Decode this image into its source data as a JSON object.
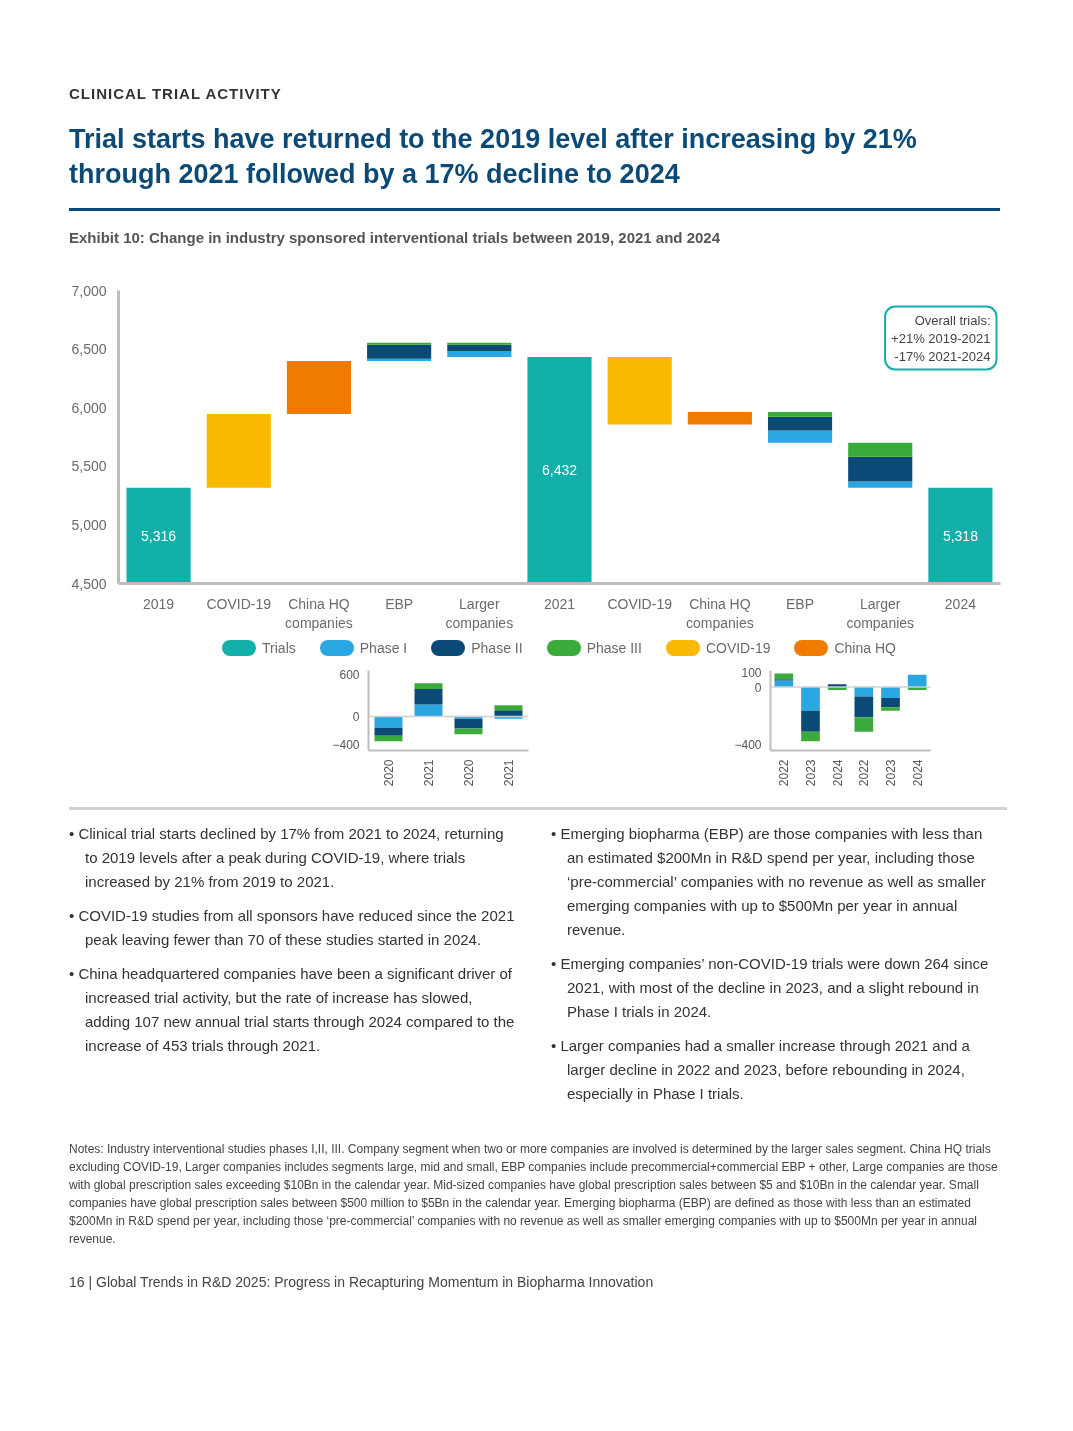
{
  "chart_data": [
    {
      "type": "bar",
      "title": "Trial starts have returned to the 2019 level after increasing by 21% through 2021 followed by a 17% decline to 2024",
      "subtitle": "Exhibit 10: Change in industry sponsored interventional trials between 2019, 2021 and 2024",
      "categories": [
        "2019",
        "COVID-19",
        "China HQ companies",
        "EBP",
        "Larger companies",
        "2021",
        "COVID-19",
        "China HQ companies",
        "EBP",
        "Larger companies",
        "2024"
      ],
      "series": [
        {
          "name": "Trials",
          "color": "#12b0a8",
          "values": [
            5316,
            null,
            null,
            null,
            null,
            6432,
            null,
            null,
            null,
            null,
            5318
          ],
          "value_labels": [
            "5,316",
            null,
            null,
            null,
            null,
            "6,432",
            null,
            null,
            null,
            null,
            "5,318"
          ]
        },
        {
          "name": "Phase I",
          "color": "#2aa6e0",
          "values": [
            null,
            null,
            null,
            18,
            52,
            null,
            null,
            null,
            105,
            52,
            null
          ],
          "base": [
            null,
            null,
            null,
            6399,
            6432,
            null,
            null,
            null,
            5700,
            5318,
            null
          ]
        },
        {
          "name": "Phase II",
          "color": "#0b4a77",
          "values": [
            null,
            null,
            null,
            120,
            53,
            null,
            null,
            null,
            117,
            212,
            null
          ],
          "base": [
            null,
            null,
            null,
            6417,
            6484,
            null,
            null,
            null,
            5805,
            5370,
            null
          ]
        },
        {
          "name": "Phase III",
          "color": "#3aaa3a",
          "values": [
            null,
            null,
            null,
            18,
            18,
            null,
            null,
            null,
            42,
            118,
            null
          ],
          "base": [
            null,
            null,
            null,
            6537,
            6537,
            null,
            null,
            null,
            5922,
            5582,
            null
          ]
        },
        {
          "name": "COVID-19",
          "color": "#fbb800",
          "values": [
            null,
            630,
            null,
            null,
            null,
            null,
            575,
            null,
            null,
            null,
            null
          ],
          "base": [
            null,
            5316,
            null,
            null,
            null,
            null,
            5857,
            null,
            null,
            null,
            null
          ]
        },
        {
          "name": "China HQ",
          "color": "#ef7c00",
          "values": [
            null,
            null,
            453,
            null,
            null,
            null,
            null,
            107,
            null,
            null,
            null
          ],
          "base": [
            null,
            null,
            5946,
            null,
            null,
            null,
            null,
            5857,
            null,
            null,
            null
          ]
        }
      ],
      "ylim": [
        4500,
        7000
      ],
      "yticks": [
        {
          "value": 4500,
          "label": "4,500"
        },
        {
          "value": 5000,
          "label": "5,000"
        },
        {
          "value": 5500,
          "label": "5,500"
        },
        {
          "value": 6000,
          "label": "6,000"
        },
        {
          "value": 6500,
          "label": "6,500"
        },
        {
          "value": 7000,
          "label": "7,000"
        }
      ],
      "legend": "bottom",
      "annotations": [
        "CLINICAL TRIAL ACTIVITY",
        "Overall trials:\n+21% 2019-2021\n-17% 2021-2024",
        "• Clinical trial starts declined by 17% from 2021 to 2024, returning to 2019 levels after a peak during COVID-19, where trials increased by 21% from 2019 to 2021.",
        "• COVID-19 studies from all sponsors have reduced since the 2021 peak leaving fewer than 70 of these studies started in 2024.",
        "• China headquartered companies have been a significant driver of increased trial activity, but the rate of increase has slowed, adding 107 new annual trial starts through 2024 compared to the increase of 453 trials through 2021.",
        "• Emerging biopharma (EBP) are those companies with less than an estimated $200Mn in R&D spend per year, including those ‘pre-commercial’ companies with no revenue as well as smaller emerging companies with up to $500Mn per year in annual revenue.",
        "• Emerging companies’ non-COVID-19 trials were down 264 since 2021, with most of the decline in 2023, and a slight rebound in Phase I trials in 2024.",
        "• Larger companies had a smaller increase through 2021 and a larger decline in 2022 and 2023, before rebounding in 2024, especially in Phase I trials.",
        "Notes: Industry interventional studies phases I,II, III. Company segment when two or more companies are involved is determined by the larger sales segment. China HQ trials excluding COVID-19, Larger companies includes segments large, mid and small, EBP companies include precommercial+commercial EBP + other, Large companies are those with global prescription sales exceeding $10Bn in the calendar year. Mid-sized companies have global prescription sales between $5 and $10Bn in the calendar year. Small companies have global prescription sales between $500 million to $5Bn in the calendar year. Emerging biopharma (EBP) are defined as those with less than an estimated $200Mn in R&D spend per year, including those ‘pre-commercial’ companies with no revenue as well as smaller emerging companies with up to $500Mn per year in annual revenue.",
        "16 | Global Trends in R&D 2025: Progress in Recapturing Momentum in Biopharma Innovation"
      ]
    },
    {
      "type": "bar",
      "stacked": true,
      "categories": [
        "2020",
        "2021",
        "2020",
        "2021"
      ],
      "series": [
        {
          "color": "#2aa6e0",
          "values": [
            -160,
            170,
            -30,
            -30
          ]
        },
        {
          "color": "#0b4a77",
          "values": [
            -110,
            220,
            -140,
            90
          ]
        },
        {
          "color": "#3aaa3a",
          "values": [
            -80,
            80,
            -80,
            70
          ]
        }
      ],
      "ylim": [
        -480,
        650
      ],
      "yticks": [
        600,
        0,
        -400
      ],
      "ref_lines": [
        {
          "axis": "y",
          "value": 0,
          "color": "#d0d0d0"
        }
      ]
    },
    {
      "type": "bar",
      "stacked": true,
      "categories": [
        "2022",
        "2023",
        "2024",
        "2022",
        "2023",
        "2024"
      ],
      "series": [
        {
          "color": "#2aa6e0",
          "values": [
            45,
            -165,
            null,
            -65,
            -75,
            85
          ]
        },
        {
          "color": "#0b4a77",
          "values": [
            10,
            -145,
            20,
            -145,
            -65,
            null
          ]
        },
        {
          "color": "#3aaa3a",
          "values": [
            40,
            -65,
            -20,
            -100,
            -25,
            -20
          ]
        }
      ],
      "ylim": [
        -440,
        115
      ],
      "yticks": [
        100,
        0,
        -400
      ],
      "ref_lines": [
        {
          "axis": "y",
          "value": 0,
          "color": "#d0d0d0"
        }
      ]
    }
  ]
}
